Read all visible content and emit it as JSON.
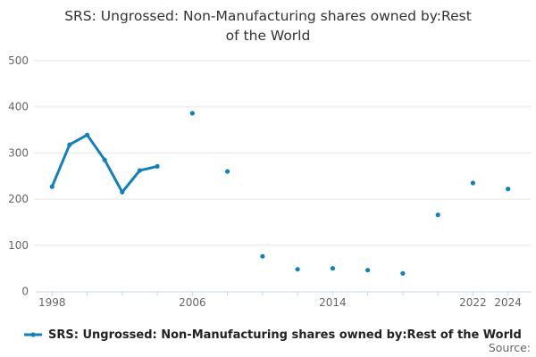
{
  "title": "SRS: Ungrossed: Non-Manufacturing shares owned by:Rest of the World",
  "legend": {
    "label": "SRS: Ungrossed: Non-Manufacturing shares owned by:Rest of the World"
  },
  "source_label": "Source:",
  "colors": {
    "series": "#1380be",
    "grid": "#e6e6e6",
    "axis": "#c9d4e3",
    "tick_label": "#666666",
    "title_text": "#333333",
    "legend_text": "#222222",
    "source_text": "#666666"
  },
  "chart_data": {
    "type": "line",
    "title": "SRS: Ungrossed: Non-Manufacturing shares owned by:Rest of the World",
    "series": [
      {
        "name": "SRS: Ungrossed: Non-Manufacturing shares owned by:Rest of the World",
        "points": [
          {
            "x": 1998,
            "y": 227
          },
          {
            "x": 1999,
            "y": 318
          },
          {
            "x": 2000,
            "y": 339
          },
          {
            "x": 2001,
            "y": 285
          },
          {
            "x": 2002,
            "y": 215
          },
          {
            "x": 2003,
            "y": 262
          },
          {
            "x": 2004,
            "y": 271
          },
          {
            "x": 2006,
            "y": 386
          },
          {
            "x": 2008,
            "y": 260
          },
          {
            "x": 2010,
            "y": 76
          },
          {
            "x": 2012,
            "y": 48
          },
          {
            "x": 2014,
            "y": 50
          },
          {
            "x": 2016,
            "y": 46
          },
          {
            "x": 2018,
            "y": 39
          },
          {
            "x": 2020,
            "y": 166
          },
          {
            "x": 2022,
            "y": 235
          },
          {
            "x": 2024,
            "y": 222
          }
        ]
      }
    ],
    "connect_rule": "consecutive-years-only",
    "xlabel": "",
    "ylabel": "",
    "ylim": [
      0,
      500
    ],
    "y_ticks": [
      0,
      100,
      200,
      300,
      400,
      500
    ],
    "x_tick_start": 1998,
    "x_tick_end": 2024,
    "x_tick_step": 2,
    "x_axis_labels": [
      "1998",
      "2006",
      "2014",
      "2022",
      "2024"
    ],
    "x_axis_label_years": [
      1998,
      2006,
      2014,
      2022,
      2024
    ],
    "grid": "horizontal",
    "legend_position": "bottom-left",
    "marker": "circle"
  }
}
